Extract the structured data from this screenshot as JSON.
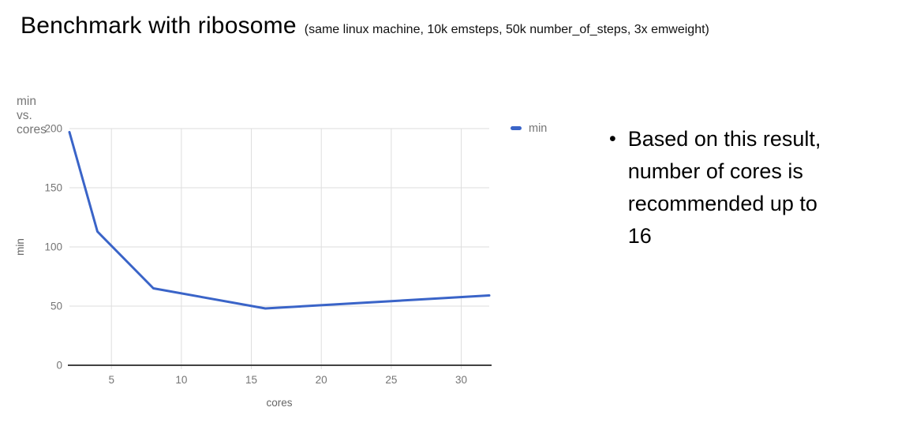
{
  "header": {
    "title": "Benchmark with ribosome",
    "subtitle": "(same linux machine, 10k emsteps, 50k number_of_steps, 3x emweight)"
  },
  "chart_data": {
    "type": "line",
    "title": "min vs. cores",
    "xlabel": "cores",
    "ylabel": "min",
    "x": [
      2,
      4,
      8,
      16,
      32
    ],
    "series": [
      {
        "name": "min",
        "color": "#3A64C8",
        "values": [
          197,
          113,
          65,
          48,
          59
        ]
      }
    ],
    "xlim": [
      2,
      32
    ],
    "ylim": [
      0,
      200
    ],
    "x_ticks": [
      5,
      10,
      15,
      20,
      25,
      30
    ],
    "y_ticks": [
      0,
      50,
      100,
      150,
      200
    ],
    "grid": true,
    "legend": {
      "position": "top-right",
      "entries": [
        "min"
      ]
    },
    "colors": {
      "gridline": "#dedede",
      "axis": "#424242",
      "tick_label": "#757575",
      "axis_title": "#666666",
      "chart_title": "#757575",
      "legend_text": "#757575"
    }
  },
  "note": {
    "bullet": "•",
    "text": "Based on this result, number of cores is recommended up to 16"
  }
}
